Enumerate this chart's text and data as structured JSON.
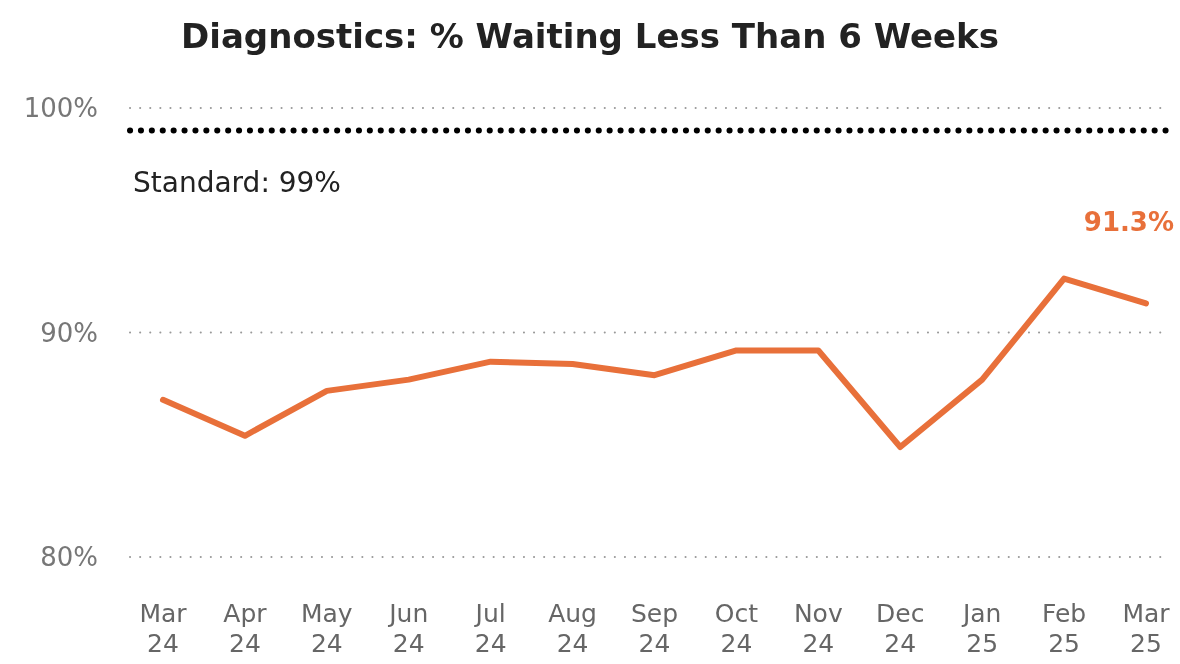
{
  "chart_data": {
    "type": "line",
    "title": "Diagnostics: % Waiting Less Than 6 Weeks",
    "categories": [
      "Mar 24",
      "Apr 24",
      "May 24",
      "Jun 24",
      "Jul 24",
      "Aug 24",
      "Sep 24",
      "Oct 24",
      "Nov 24",
      "Dec 24",
      "Jan 25",
      "Feb 25",
      "Mar 25"
    ],
    "series": [
      {
        "color": "#e8703a",
        "values": [
          87.0,
          85.4,
          87.4,
          87.9,
          88.7,
          88.6,
          88.1,
          89.2,
          89.2,
          84.9,
          87.9,
          92.4,
          91.3
        ],
        "value_labels": [
          null,
          null,
          null,
          null,
          null,
          null,
          null,
          null,
          null,
          null,
          null,
          null,
          "91.3%"
        ]
      }
    ],
    "ylim": [
      80,
      100
    ],
    "yticks": [
      {
        "value": 80,
        "label": "80%"
      },
      {
        "value": 90,
        "label": "90%"
      },
      {
        "value": 100,
        "label": "100%"
      }
    ],
    "grid": "y",
    "marker": "none",
    "line_style": "solid",
    "ref_lines": [
      {
        "axis": "y",
        "value": 99,
        "label": "Standard: 99%",
        "color": "#000000",
        "line_style": "dotted"
      }
    ]
  }
}
